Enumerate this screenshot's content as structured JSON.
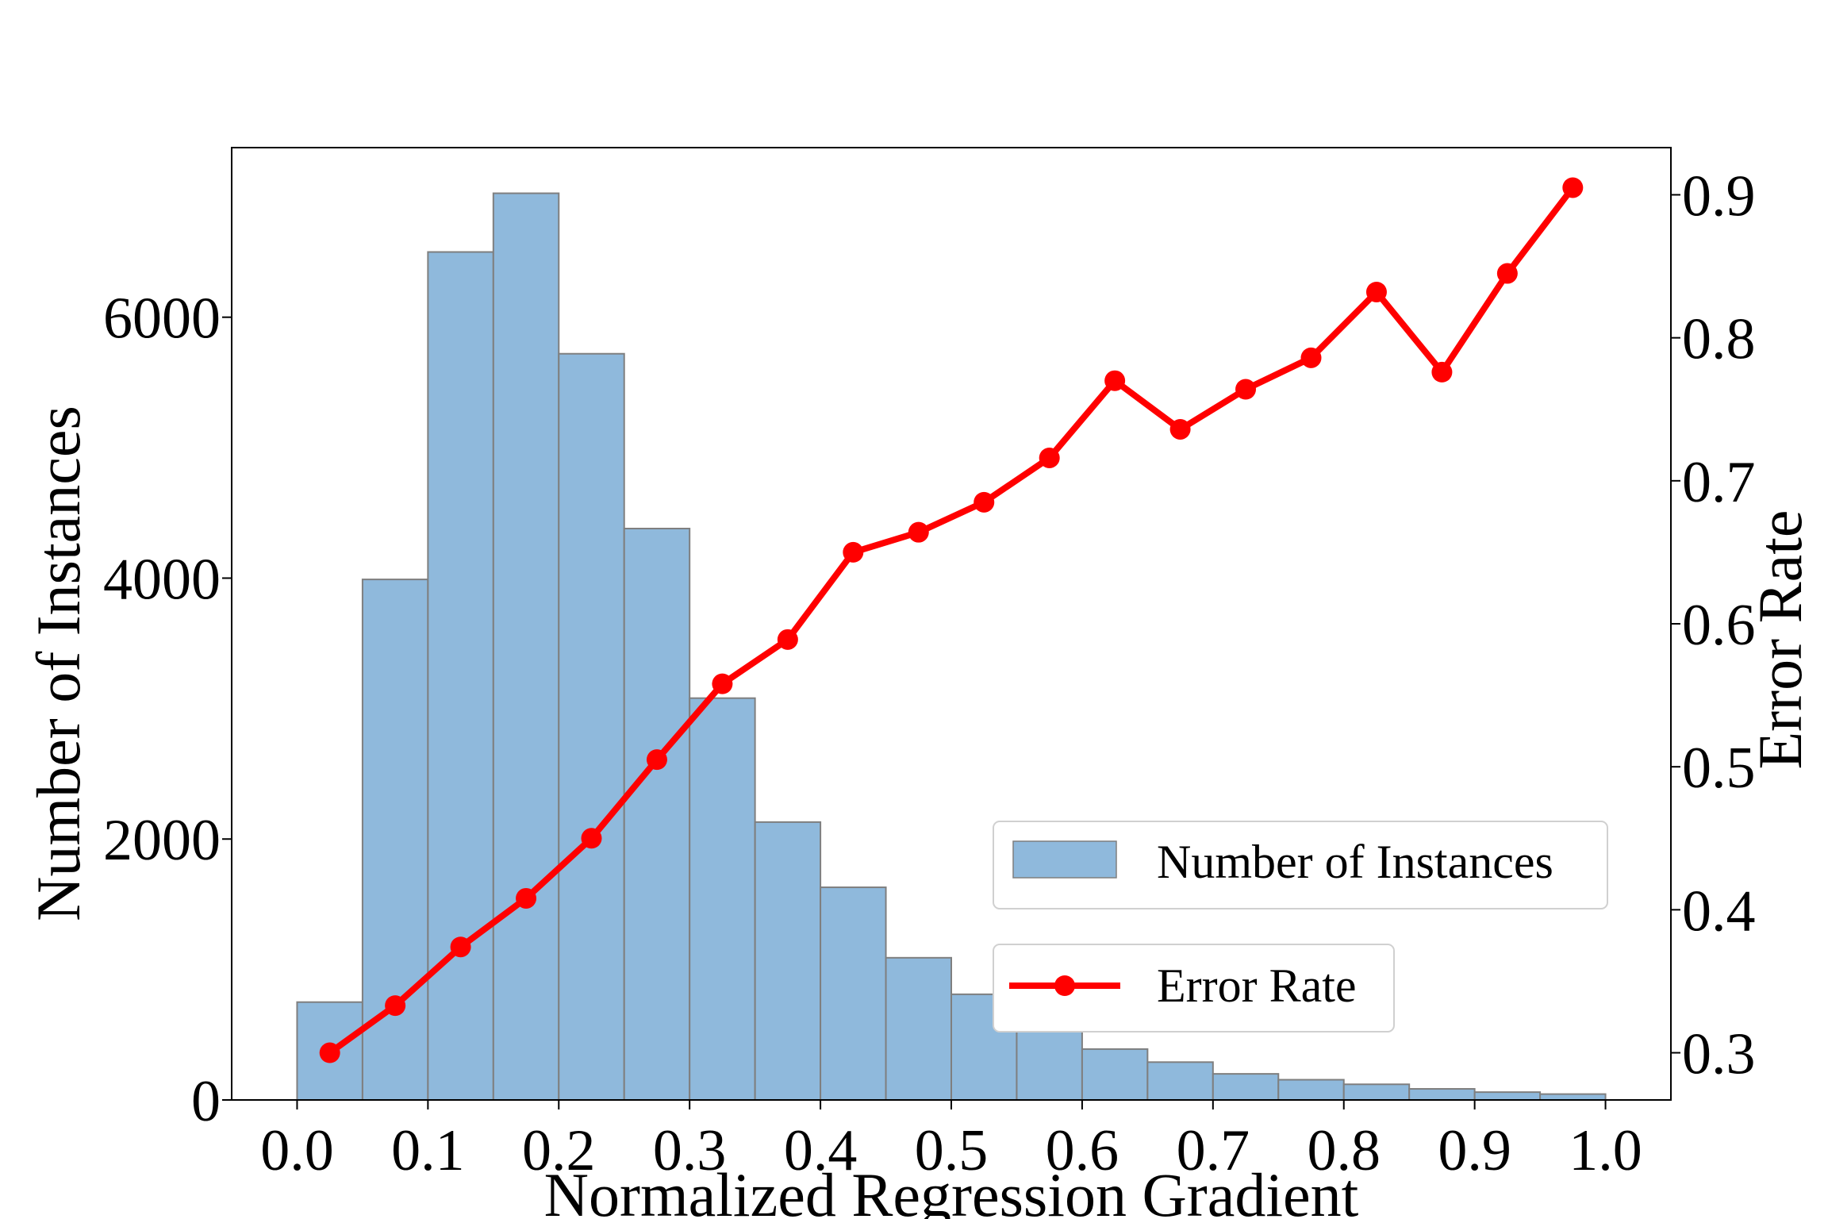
{
  "chart_data": {
    "type": "bar",
    "xlabel": "Normalized Regression Gradient",
    "ylabel": "Number of Instances",
    "y2label": "Error Rate",
    "xlim": [
      -0.05,
      1.05
    ],
    "ylim": [
      0,
      7300
    ],
    "y2lim": [
      0.267,
      0.933
    ],
    "xticks": [
      "0.0",
      "0.1",
      "0.2",
      "0.3",
      "0.4",
      "0.5",
      "0.6",
      "0.7",
      "0.8",
      "0.9",
      "1.0"
    ],
    "yticks": [
      "0",
      "2000",
      "4000",
      "6000"
    ],
    "y2ticks": [
      "0.3",
      "0.4",
      "0.5",
      "0.6",
      "0.7",
      "0.8",
      "0.9"
    ],
    "bin_edges": [
      0.0,
      0.05,
      0.1,
      0.15,
      0.2,
      0.25,
      0.3,
      0.35,
      0.4,
      0.45,
      0.5,
      0.55,
      0.6,
      0.65,
      0.7,
      0.75,
      0.8,
      0.85,
      0.9,
      0.95,
      1.0
    ],
    "bar_color": "#8fb9dc",
    "line_color": "#ff0000",
    "grid": false,
    "legend_position": "lower-right",
    "series": [
      {
        "name": "Number of Instances",
        "type": "bar",
        "axis": "left",
        "values": [
          750,
          3990,
          6500,
          6950,
          5720,
          4380,
          3080,
          2130,
          1630,
          1090,
          810,
          600,
          390,
          290,
          200,
          155,
          120,
          85,
          60,
          45
        ]
      },
      {
        "name": "Error Rate",
        "type": "line",
        "axis": "right",
        "x": [
          0.025,
          0.075,
          0.125,
          0.175,
          0.225,
          0.275,
          0.325,
          0.375,
          0.425,
          0.475,
          0.525,
          0.575,
          0.625,
          0.675,
          0.725,
          0.775,
          0.825,
          0.875,
          0.925,
          0.975
        ],
        "values": [
          0.3,
          0.333,
          0.374,
          0.408,
          0.45,
          0.505,
          0.558,
          0.589,
          0.65,
          0.664,
          0.685,
          0.716,
          0.77,
          0.736,
          0.764,
          0.786,
          0.832,
          0.776,
          0.845,
          0.905
        ]
      }
    ]
  }
}
